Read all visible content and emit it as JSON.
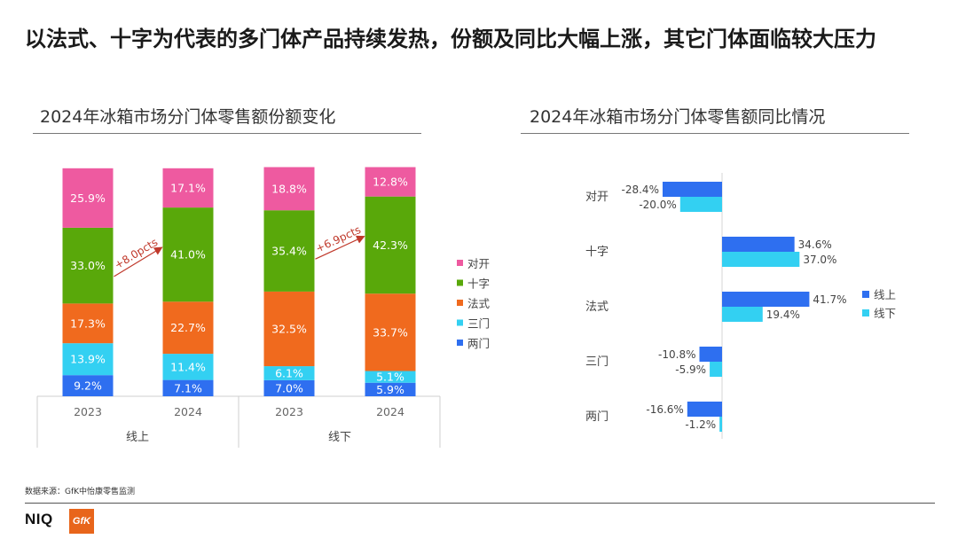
{
  "title": "以法式、十字为代表的多门体产品持续发热，份额及同比大幅上涨，其它门体面临较大压力",
  "left_subtitle": "2024年冰箱市场分门体零售额份额变化",
  "right_subtitle": "2024年冰箱市场分门体零售额同比情况",
  "source": "数据来源：GfK中怡康零售监测",
  "logo_niq": "NIQ",
  "logo_gfk": "GfK",
  "colors": {
    "对开": "#ee5aa0",
    "十字": "#59a80a",
    "法式": "#f06a1e",
    "三门": "#33d0f2",
    "两门": "#2e6ff0",
    "线上": "#2e6ff0",
    "线下": "#33d0f2"
  },
  "chart_data": [
    {
      "type": "bar",
      "stacked": true,
      "percent_stacked": true,
      "title": "2024年冰箱市场分门体零售额份额变化",
      "groups": [
        "线上",
        "线上",
        "线下",
        "线下"
      ],
      "group_labels": [
        "线上",
        "线下"
      ],
      "categories": [
        "2023",
        "2024",
        "2023",
        "2024"
      ],
      "series": [
        {
          "name": "两门",
          "values": [
            9.2,
            7.1,
            7.0,
            5.9
          ]
        },
        {
          "name": "三门",
          "values": [
            13.9,
            11.4,
            6.1,
            5.1
          ]
        },
        {
          "name": "法式",
          "values": [
            17.3,
            22.7,
            32.5,
            33.7
          ]
        },
        {
          "name": "十字",
          "values": [
            33.0,
            41.0,
            35.4,
            42.3
          ]
        },
        {
          "name": "对开",
          "values": [
            25.9,
            17.1,
            18.8,
            12.8
          ]
        }
      ],
      "data_labels": [
        [
          "9.2%",
          "7.1%",
          "7.0%",
          "5.9%"
        ],
        [
          "13.9%",
          "11.4%",
          "6.1%",
          "5.1%"
        ],
        [
          "17.3%",
          "22.7%",
          "32.5%",
          "33.7%"
        ],
        [
          "33.0%",
          "41.0%",
          "35.4%",
          "42.3%"
        ],
        [
          "25.9%",
          "17.1%",
          "18.8%",
          "12.8%"
        ]
      ],
      "annotations": [
        {
          "text": "+8.0pcts",
          "from_bar": 0,
          "to_bar": 1
        },
        {
          "text": "+6.9pcts",
          "from_bar": 2,
          "to_bar": 3
        }
      ],
      "legend": [
        "对开",
        "十字",
        "法式",
        "三门",
        "两门"
      ],
      "legend_position": "right"
    },
    {
      "type": "bar",
      "orientation": "horizontal",
      "title": "2024年冰箱市场分门体零售额同比情况",
      "categories": [
        "对开",
        "十字",
        "法式",
        "三门",
        "两门"
      ],
      "series": [
        {
          "name": "线上",
          "values": [
            -28.4,
            34.6,
            41.7,
            -10.8,
            -16.6
          ]
        },
        {
          "name": "线下",
          "values": [
            -20.0,
            37.0,
            19.4,
            -5.9,
            -1.2
          ]
        }
      ],
      "data_labels": [
        [
          "-28.4%",
          "34.6%",
          "41.7%",
          "-10.8%",
          "-16.6%"
        ],
        [
          "-20.0%",
          "37.0%",
          "19.4%",
          "-5.9%",
          "-1.2%"
        ]
      ],
      "legend": [
        "线上",
        "线下"
      ],
      "legend_position": "right"
    }
  ]
}
